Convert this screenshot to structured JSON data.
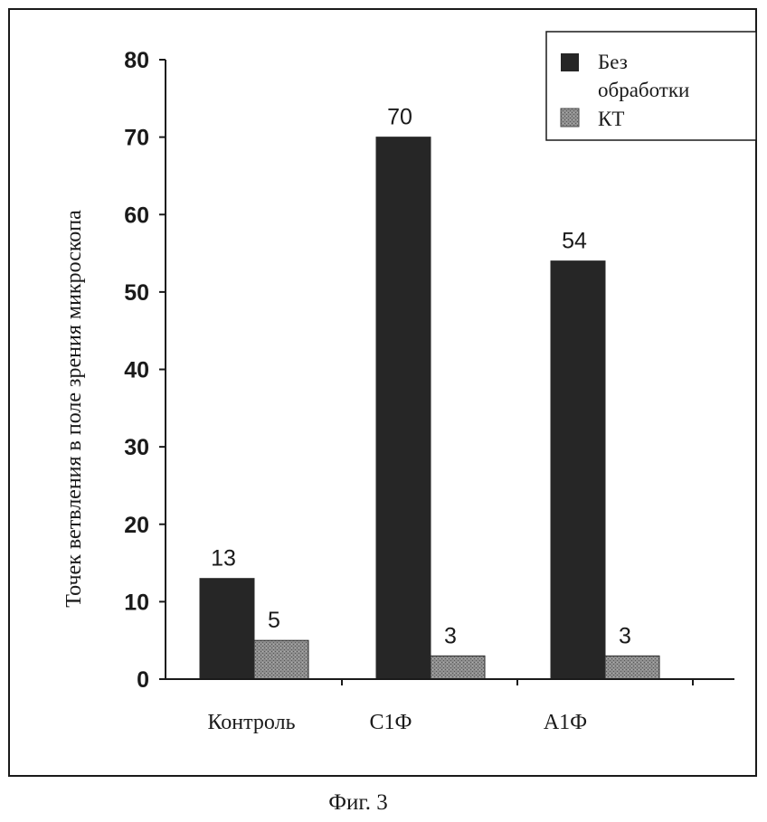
{
  "chart_data": {
    "type": "bar",
    "ylabel": "Точек ветвления в поле зрения микроскопа",
    "ylim": [
      0,
      80
    ],
    "yticks": [
      0,
      10,
      20,
      30,
      40,
      50,
      60,
      70,
      80
    ],
    "categories": [
      "Контроль",
      "С1Ф",
      "А1Ф"
    ],
    "series": [
      {
        "name": "Без обработки",
        "values": [
          13,
          70,
          54
        ]
      },
      {
        "name": "КТ",
        "values": [
          5,
          3,
          3
        ]
      }
    ],
    "legend_position": "top-right",
    "colors": {
      "series_0": "#262626",
      "series_1": "#8a8a8a",
      "axis": "#1a1a1a",
      "frame": "#1a1a1a"
    }
  },
  "caption": "Фиг. 3"
}
